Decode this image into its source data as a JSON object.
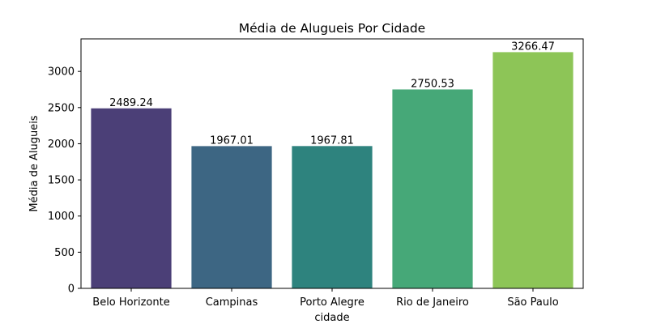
{
  "chart_data": {
    "type": "bar",
    "title": "Média de Alugueis Por Cidade",
    "xlabel": "cidade",
    "ylabel": "Média de Alugueis",
    "categories": [
      "Belo Horizonte",
      "Campinas",
      "Porto Alegre",
      "Rio de Janeiro",
      "São Paulo"
    ],
    "values": [
      2489.24,
      1967.01,
      1967.81,
      2750.53,
      3266.47
    ],
    "value_labels": [
      "2489.24",
      "1967.01",
      "1967.81",
      "2750.53",
      "3266.47"
    ],
    "colors": [
      "#4b3f77",
      "#3d6683",
      "#2e837e",
      "#46a878",
      "#8dc557"
    ],
    "ylim": [
      0,
      3450
    ],
    "yticks": [
      0,
      500,
      1000,
      1500,
      2000,
      2500,
      3000
    ],
    "grid": false,
    "legend": "none"
  }
}
